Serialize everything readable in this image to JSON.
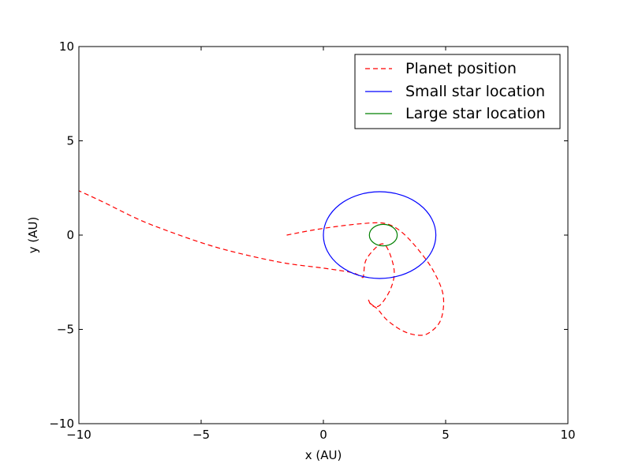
{
  "chart_data": {
    "type": "line",
    "title": "",
    "xlabel": "x (AU)",
    "ylabel": "y (AU)",
    "xlim": [
      -10,
      10
    ],
    "ylim": [
      -10,
      10
    ],
    "xticks": [
      -10,
      -5,
      0,
      5,
      10
    ],
    "yticks": [
      -10,
      -5,
      0,
      5,
      10
    ],
    "xtick_labels": [
      "−10",
      "−5",
      "0",
      "5",
      "10"
    ],
    "ytick_labels": [
      "−10",
      "−5",
      "0",
      "5",
      "10"
    ],
    "grid": false,
    "legend_position": "top-right",
    "series": [
      {
        "name": "Planet position",
        "color": "#ff0000",
        "style": "dashed",
        "points": [
          [
            -1.5,
            0.0
          ],
          [
            -0.5,
            0.25
          ],
          [
            0.5,
            0.45
          ],
          [
            1.5,
            0.6
          ],
          [
            2.3,
            0.65
          ],
          [
            2.8,
            0.5
          ],
          [
            3.3,
            0.05
          ],
          [
            3.9,
            -0.8
          ],
          [
            4.5,
            -1.9
          ],
          [
            4.9,
            -3.2
          ],
          [
            4.8,
            -4.5
          ],
          [
            4.3,
            -5.2
          ],
          [
            3.8,
            -5.3
          ],
          [
            3.2,
            -5.05
          ],
          [
            2.6,
            -4.5
          ],
          [
            2.2,
            -3.9
          ],
          [
            1.95,
            -3.7
          ],
          [
            1.85,
            -3.45
          ],
          [
            1.9,
            -3.6
          ],
          [
            2.15,
            -3.8
          ],
          [
            2.4,
            -3.6
          ],
          [
            2.75,
            -2.85
          ],
          [
            2.9,
            -2.0
          ],
          [
            2.75,
            -1.1
          ],
          [
            2.5,
            -0.5
          ],
          [
            2.2,
            -0.6
          ],
          [
            1.75,
            -1.3
          ],
          [
            1.65,
            -2.0
          ],
          [
            1.6,
            -2.25
          ],
          [
            1.2,
            -2.0
          ],
          [
            0.0,
            -1.75
          ],
          [
            -1.5,
            -1.5
          ],
          [
            -3.0,
            -1.1
          ],
          [
            -4.5,
            -0.6
          ],
          [
            -6.0,
            0.05
          ],
          [
            -7.5,
            0.8
          ],
          [
            -9.0,
            1.75
          ],
          [
            -10.0,
            2.35
          ]
        ]
      },
      {
        "name": "Small star location",
        "color": "#0000ff",
        "style": "solid",
        "ellipse": {
          "cx": 2.3,
          "cy": 0.0,
          "rx": 2.3,
          "ry": 2.3
        }
      },
      {
        "name": "Large star location",
        "color": "#008000",
        "style": "solid",
        "ellipse": {
          "cx": 2.45,
          "cy": 0.0,
          "rx": 0.57,
          "ry": 0.57
        }
      }
    ]
  }
}
